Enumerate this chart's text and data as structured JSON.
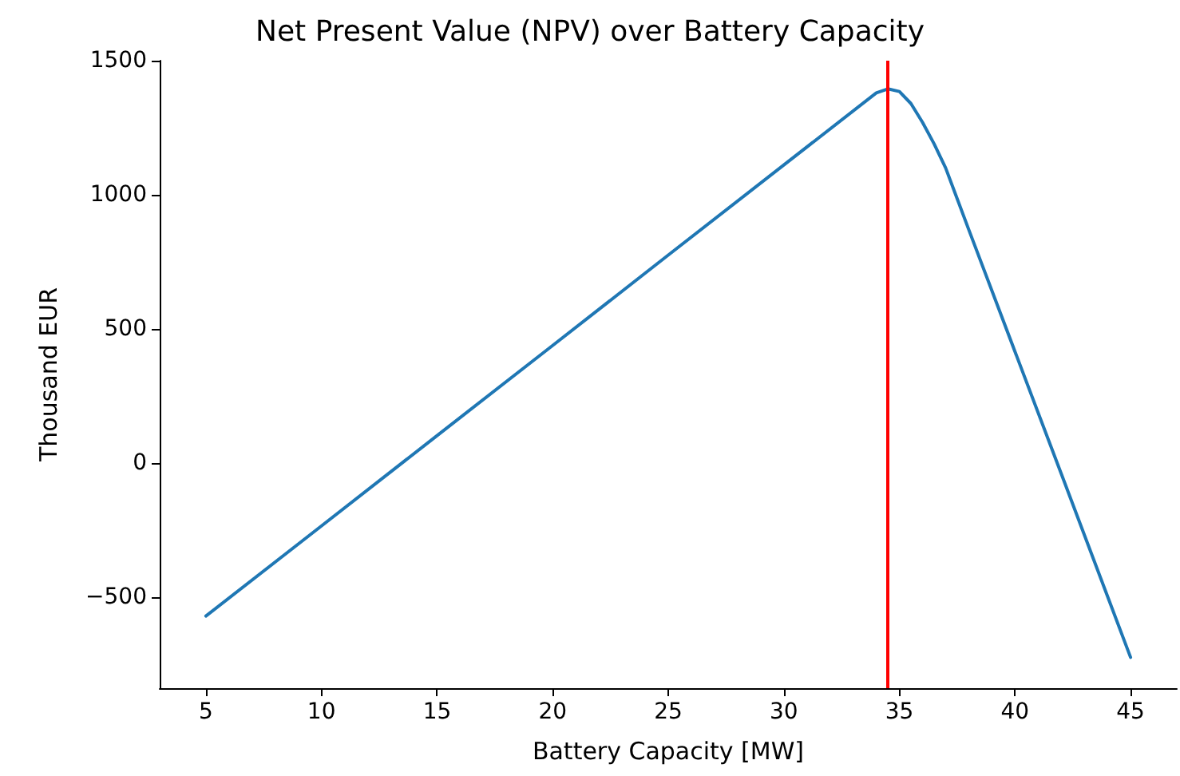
{
  "chart_data": {
    "type": "line",
    "title": "Net Present Value (NPV) over Battery Capacity",
    "xlabel": "Battery Capacity [MW]",
    "ylabel": "Thousand EUR",
    "x": [
      5,
      10,
      15,
      20,
      25,
      30,
      34,
      34.5,
      35,
      35.5,
      36,
      36.5,
      37,
      37.5,
      38,
      40,
      42,
      45
    ],
    "series": [
      {
        "color": "#1f77b4",
        "values": [
          -571,
          -235,
          102,
          438,
          775,
          1111,
          1380,
          1395,
          1385,
          1340,
          1270,
          1190,
          1100,
          985,
          870,
          415,
          -40,
          -725
        ]
      }
    ],
    "xlim": [
      3,
      47
    ],
    "xticks": [
      5,
      10,
      15,
      20,
      25,
      30,
      35,
      40,
      45
    ],
    "ylim": [
      -840,
      1500
    ],
    "yticks": [
      -500,
      0,
      500,
      1000,
      1500
    ],
    "ref_lines": [
      {
        "axis": "x",
        "value": 34.5,
        "color": "#ff0000"
      }
    ],
    "grid": false,
    "marker": "none",
    "line_style": "solid"
  }
}
